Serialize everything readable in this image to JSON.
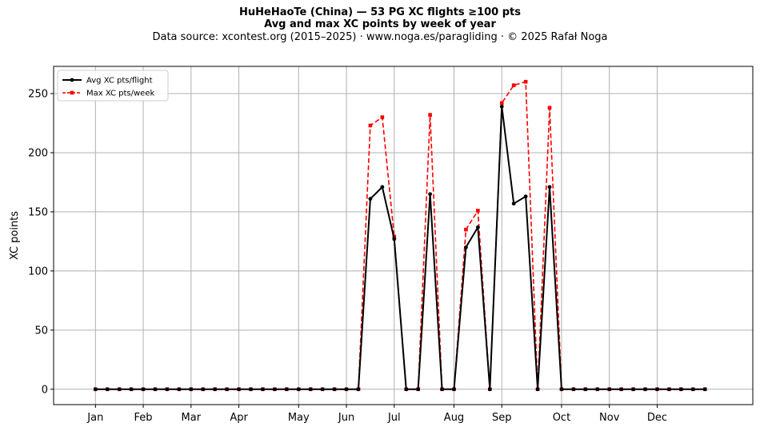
{
  "title_line1": "HuHeHaoTe (China)  —  53 PG XC flights ≥100 pts",
  "title_line2": "Avg and max XC points by week of year",
  "subtitle": "Data source: xcontest.org (2015–2025)  ·  www.noga.es/paragliding  ·  © 2025 Rafał Noga",
  "chart_data": {
    "type": "line",
    "title": "HuHeHaoTe (China)  —  53 PG XC flights ≥100 pts",
    "xlabel": "",
    "ylabel": "XC points",
    "xlim": [
      -2.5,
      56
    ],
    "ylim": [
      -13,
      273
    ],
    "grid": true,
    "legend_position": "top-left",
    "month_ticks": [
      {
        "label": "Jan",
        "week": 1
      },
      {
        "label": "Feb",
        "week": 5
      },
      {
        "label": "Mar",
        "week": 9
      },
      {
        "label": "Apr",
        "week": 13
      },
      {
        "label": "May",
        "week": 18
      },
      {
        "label": "Jun",
        "week": 22
      },
      {
        "label": "Jul",
        "week": 26
      },
      {
        "label": "Aug",
        "week": 31
      },
      {
        "label": "Sep",
        "week": 35
      },
      {
        "label": "Oct",
        "week": 40
      },
      {
        "label": "Nov",
        "week": 44
      },
      {
        "label": "Dec",
        "week": 48
      }
    ],
    "y_ticks": [
      0,
      50,
      100,
      150,
      200,
      250
    ],
    "x": [
      1,
      2,
      3,
      4,
      5,
      6,
      7,
      8,
      9,
      10,
      11,
      12,
      13,
      14,
      15,
      16,
      17,
      18,
      19,
      20,
      21,
      22,
      23,
      24,
      25,
      26,
      27,
      28,
      29,
      30,
      31,
      32,
      33,
      34,
      35,
      36,
      37,
      38,
      39,
      40,
      41,
      42,
      43,
      44,
      45,
      46,
      47,
      48,
      49,
      50,
      51,
      52
    ],
    "series": [
      {
        "name": "Avg XC pts/flight",
        "color": "#000000",
        "style": "solid",
        "marker": "circle",
        "values": [
          0,
          0,
          0,
          0,
          0,
          0,
          0,
          0,
          0,
          0,
          0,
          0,
          0,
          0,
          0,
          0,
          0,
          0,
          0,
          0,
          0,
          0,
          0,
          161,
          171,
          127,
          0,
          0,
          165,
          0,
          0,
          120,
          137,
          0,
          239,
          157,
          163,
          0,
          171,
          0,
          0,
          0,
          0,
          0,
          0,
          0,
          0,
          0,
          0,
          0,
          0,
          0
        ]
      },
      {
        "name": "Max XC pts/week",
        "color": "#ff0000",
        "style": "dashed",
        "marker": "square",
        "values": [
          0,
          0,
          0,
          0,
          0,
          0,
          0,
          0,
          0,
          0,
          0,
          0,
          0,
          0,
          0,
          0,
          0,
          0,
          0,
          0,
          0,
          0,
          0,
          223,
          230,
          129,
          0,
          0,
          232,
          0,
          0,
          135,
          151,
          0,
          242,
          257,
          260,
          0,
          238,
          0,
          0,
          0,
          0,
          0,
          0,
          0,
          0,
          0,
          0,
          0,
          0,
          0
        ]
      }
    ]
  }
}
